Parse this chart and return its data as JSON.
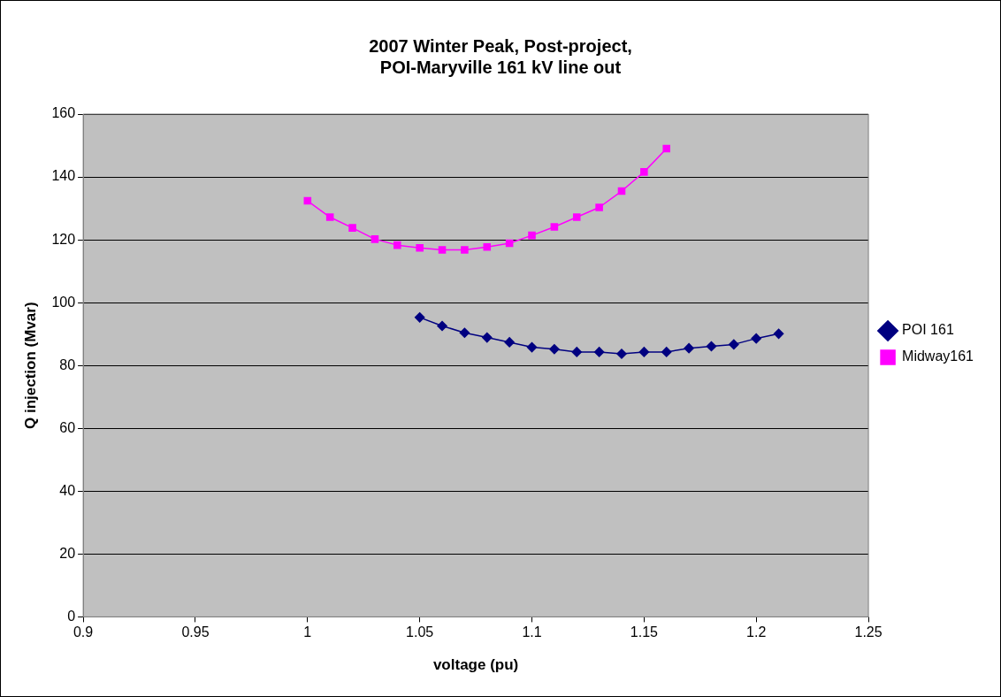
{
  "chart_data": {
    "type": "line",
    "title": [
      "2007 Winter Peak, Post-project,",
      "POI-Maryville 161 kV line out"
    ],
    "xlabel": "voltage (pu)",
    "ylabel": "Q injection (Mvar)",
    "xlim": [
      0.9,
      1.25
    ],
    "xticks": [
      0.9,
      0.95,
      1,
      1.05,
      1.1,
      1.15,
      1.2,
      1.25
    ],
    "ylim": [
      0,
      160
    ],
    "yticks": [
      0,
      20,
      40,
      60,
      80,
      100,
      120,
      140,
      160
    ],
    "grid": "y",
    "legend": "right",
    "line_style": "solid",
    "series": [
      {
        "name": "POI 161",
        "color": "#000080",
        "marker": "diamond",
        "x": [
          1.05,
          1.06,
          1.07,
          1.08,
          1.09,
          1.1,
          1.11,
          1.12,
          1.13,
          1.14,
          1.15,
          1.16,
          1.17,
          1.18,
          1.19,
          1.2,
          1.21
        ],
        "values": [
          95.3,
          92.6,
          90.4,
          88.9,
          87.4,
          85.8,
          85.2,
          84.3,
          84.3,
          83.7,
          84.3,
          84.3,
          85.5,
          86.1,
          86.7,
          88.6,
          90.1
        ]
      },
      {
        "name": "Midway161",
        "color": "#ff00ff",
        "marker": "square",
        "x": [
          1,
          1.01,
          1.02,
          1.03,
          1.04,
          1.05,
          1.06,
          1.07,
          1.08,
          1.09,
          1.1,
          1.11,
          1.12,
          1.13,
          1.14,
          1.15,
          1.16
        ],
        "values": [
          132.4,
          127.2,
          123.8,
          120.2,
          118.3,
          117.4,
          116.8,
          116.8,
          117.7,
          118.9,
          121.4,
          124.1,
          127.2,
          130.3,
          135.5,
          141.6,
          149.0
        ]
      }
    ]
  }
}
